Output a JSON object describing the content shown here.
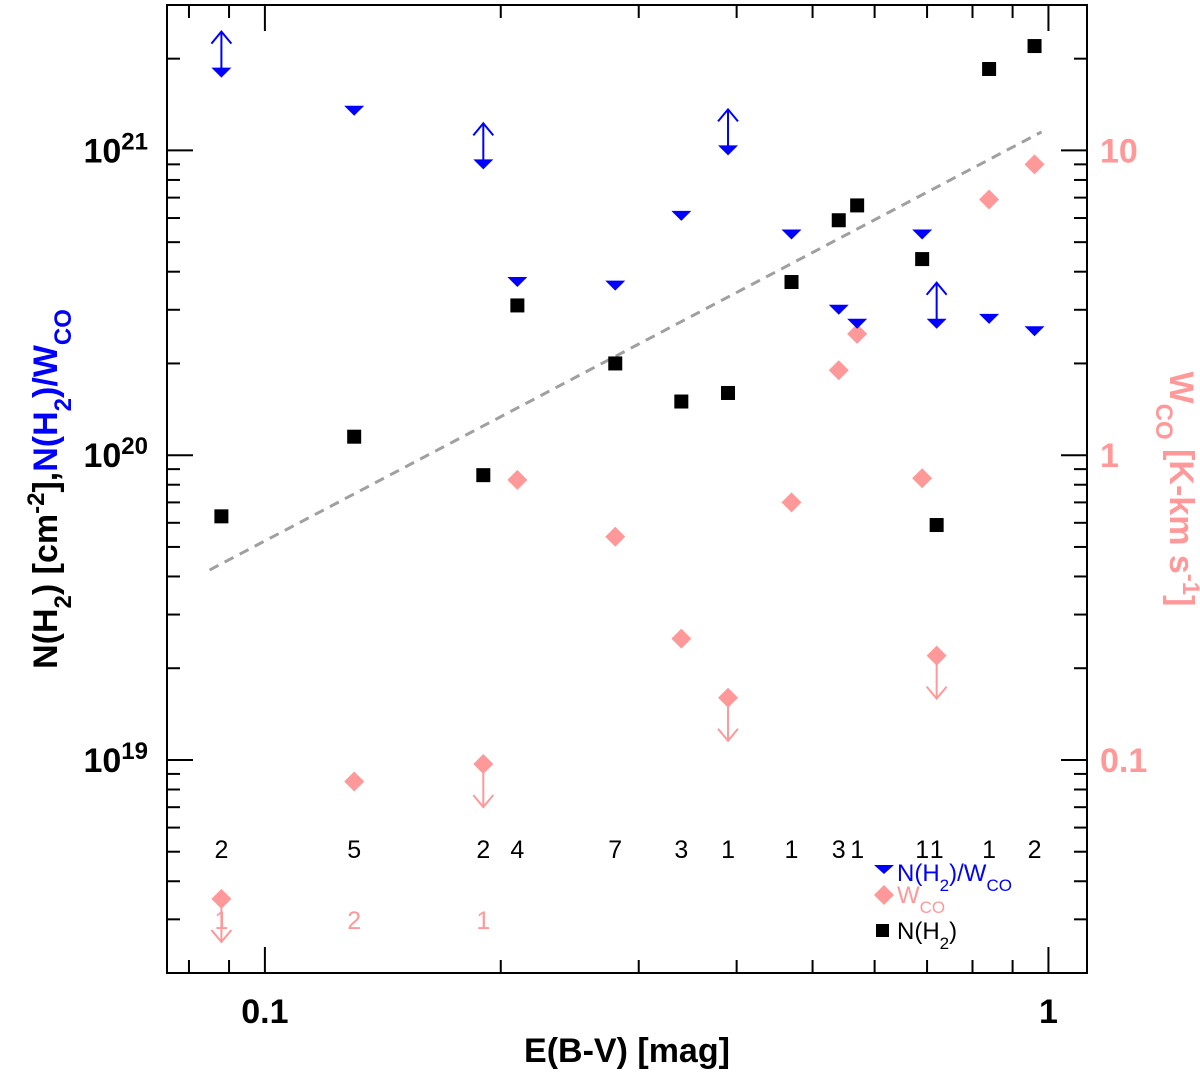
{
  "chart_data": {
    "type": "scatter",
    "xscale": "log",
    "xlim": [
      0.075,
      1.12
    ],
    "ylim_left": [
      2e+18,
      3e+21
    ],
    "ylim_right": [
      0.02,
      30
    ],
    "xlabel": "E(B-V) [mag]",
    "ylabel_left": {
      "part1": "N(H",
      "sub1": "2",
      "part2": ") [cm",
      "sup": "-2",
      "part3": "],",
      "part4": "N(H",
      "sub2": "2",
      "part5": ")/W",
      "sub3": "CO"
    },
    "ylabel_right": {
      "main": "W",
      "sub": "CO",
      "rest": " [K-km s",
      "sup": "-1",
      "end": "]"
    },
    "x_ticks": [
      {
        "value": 0.1,
        "label": "0.1"
      },
      {
        "value": 1,
        "label": "1"
      }
    ],
    "y_ticks_left": [
      {
        "value": 1e+19,
        "base": "10",
        "exp": "19"
      },
      {
        "value": 1e+20,
        "base": "10",
        "exp": "20"
      },
      {
        "value": 1e+21,
        "base": "10",
        "exp": "21"
      }
    ],
    "y_ticks_right": [
      {
        "value": 0.1,
        "label": "0.1"
      },
      {
        "value": 1,
        "label": "1"
      },
      {
        "value": 10,
        "label": "10"
      }
    ],
    "colors": {
      "nh2": "#000000",
      "ratio": "#0000ff",
      "wco": "#ff9999",
      "fit": "#a0a0a0"
    },
    "series": [
      {
        "name": "N(H2)/WCO",
        "legend": {
          "main": "N(H",
          "sub1": "2",
          "mid": ")/W",
          "sub2": "CO"
        },
        "marker": "triangle-down",
        "axis": "left",
        "points": [
          {
            "x": 0.088,
            "y": 1.8e+21,
            "limit": "lower"
          },
          {
            "x": 0.13,
            "y": 1.35e+21
          },
          {
            "x": 0.19,
            "y": 9e+20,
            "limit": "lower"
          },
          {
            "x": 0.21,
            "y": 3.7e+20
          },
          {
            "x": 0.28,
            "y": 3.6e+20
          },
          {
            "x": 0.34,
            "y": 6.1e+20
          },
          {
            "x": 0.39,
            "y": 1e+21,
            "limit": "lower"
          },
          {
            "x": 0.47,
            "y": 5.3e+20
          },
          {
            "x": 0.54,
            "y": 3e+20
          },
          {
            "x": 0.57,
            "y": 2.7e+20
          },
          {
            "x": 0.69,
            "y": 5.3e+20
          },
          {
            "x": 0.72,
            "y": 2.7e+20,
            "limit": "lower"
          },
          {
            "x": 0.84,
            "y": 2.8e+20
          },
          {
            "x": 0.96,
            "y": 2.55e+20
          }
        ]
      },
      {
        "name": "WCO",
        "legend": {
          "main": "W",
          "sub": "CO"
        },
        "marker": "diamond",
        "axis": "right",
        "points": [
          {
            "x": 0.088,
            "y": 0.035,
            "limit": "upper"
          },
          {
            "x": 0.13,
            "y": 0.085
          },
          {
            "x": 0.19,
            "y": 0.097,
            "limit": "upper"
          },
          {
            "x": 0.21,
            "y": 0.83
          },
          {
            "x": 0.28,
            "y": 0.54
          },
          {
            "x": 0.34,
            "y": 0.25
          },
          {
            "x": 0.39,
            "y": 0.16,
            "limit": "upper"
          },
          {
            "x": 0.47,
            "y": 0.7
          },
          {
            "x": 0.54,
            "y": 1.9
          },
          {
            "x": 0.57,
            "y": 2.5
          },
          {
            "x": 0.69,
            "y": 0.84
          },
          {
            "x": 0.72,
            "y": 0.22,
            "limit": "upper"
          },
          {
            "x": 0.84,
            "y": 6.9
          },
          {
            "x": 0.96,
            "y": 9.0
          }
        ]
      },
      {
        "name": "N(H2)",
        "legend": {
          "main": "N(H",
          "sub": "2",
          "end": ")"
        },
        "marker": "square",
        "axis": "left",
        "points": [
          {
            "x": 0.088,
            "y": 6.3e+19
          },
          {
            "x": 0.13,
            "y": 1.15e+20
          },
          {
            "x": 0.19,
            "y": 8.6e+19
          },
          {
            "x": 0.21,
            "y": 3.1e+20
          },
          {
            "x": 0.28,
            "y": 2e+20
          },
          {
            "x": 0.34,
            "y": 1.5e+20
          },
          {
            "x": 0.39,
            "y": 1.6e+20
          },
          {
            "x": 0.47,
            "y": 3.7e+20
          },
          {
            "x": 0.54,
            "y": 5.9e+20
          },
          {
            "x": 0.57,
            "y": 6.6e+20
          },
          {
            "x": 0.69,
            "y": 4.4e+20
          },
          {
            "x": 0.72,
            "y": 5.9e+19
          },
          {
            "x": 0.84,
            "y": 1.85e+21
          },
          {
            "x": 0.96,
            "y": 2.2e+21
          }
        ]
      }
    ],
    "fit_line": {
      "x": [
        0.085,
        0.98
      ],
      "y": [
        4.2e+19,
        1.15e+21
      ],
      "style": "dashed"
    },
    "counts_nh2": [
      {
        "x": 0.088,
        "label": "2"
      },
      {
        "x": 0.13,
        "label": "5"
      },
      {
        "x": 0.19,
        "label": "2"
      },
      {
        "x": 0.21,
        "label": "4"
      },
      {
        "x": 0.28,
        "label": "7"
      },
      {
        "x": 0.34,
        "label": "3"
      },
      {
        "x": 0.39,
        "label": "1"
      },
      {
        "x": 0.47,
        "label": "1"
      },
      {
        "x": 0.54,
        "label": "3"
      },
      {
        "x": 0.57,
        "label": "1"
      },
      {
        "x": 0.69,
        "label": "1"
      },
      {
        "x": 0.72,
        "label": "1"
      },
      {
        "x": 0.84,
        "label": "1"
      },
      {
        "x": 0.96,
        "label": "2"
      }
    ],
    "counts_wco": [
      {
        "x": 0.088,
        "label": "1"
      },
      {
        "x": 0.13,
        "label": "2"
      },
      {
        "x": 0.19,
        "label": "1"
      }
    ]
  }
}
